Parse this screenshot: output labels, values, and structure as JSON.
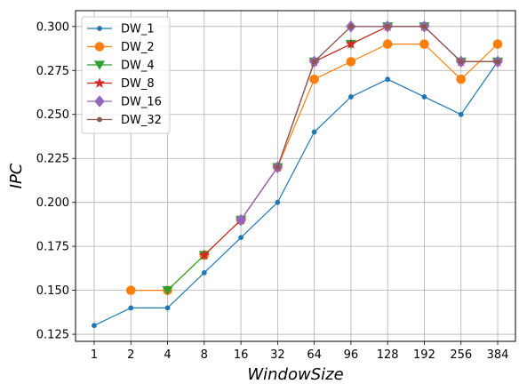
{
  "chart_data": {
    "type": "line",
    "title": "",
    "xlabel": "WindowSize",
    "ylabel": "IPC",
    "categories": [
      "1",
      "2",
      "4",
      "8",
      "16",
      "32",
      "64",
      "96",
      "128",
      "192",
      "256",
      "384"
    ],
    "ylim": [
      0.121,
      0.309
    ],
    "yticks": [
      "0.125",
      "0.150",
      "0.175",
      "0.200",
      "0.225",
      "0.250",
      "0.275",
      "0.300"
    ],
    "grid": true,
    "legend_position": "upper-left",
    "series": [
      {
        "name": "DW_1",
        "color": "#1f77b4",
        "marker": "point",
        "values": [
          0.13,
          0.14,
          0.14,
          0.16,
          0.18,
          0.2,
          0.24,
          0.26,
          0.27,
          0.26,
          0.25,
          0.28
        ]
      },
      {
        "name": "DW_2",
        "color": "#ff7f0e",
        "marker": "circle",
        "values": [
          null,
          0.15,
          0.15,
          0.17,
          0.19,
          0.22,
          0.27,
          0.28,
          0.29,
          0.29,
          0.27,
          0.29
        ]
      },
      {
        "name": "DW_4",
        "color": "#2ca02c",
        "marker": "triangle-down",
        "values": [
          null,
          null,
          0.15,
          0.17,
          0.19,
          0.22,
          0.28,
          0.29,
          0.3,
          0.3,
          0.28,
          0.28
        ]
      },
      {
        "name": "DW_8",
        "color": "#d62728",
        "marker": "star",
        "values": [
          null,
          null,
          null,
          0.17,
          0.19,
          0.22,
          0.28,
          0.29,
          0.3,
          0.3,
          0.28,
          0.28
        ]
      },
      {
        "name": "DW_16",
        "color": "#9467bd",
        "marker": "diamond",
        "values": [
          null,
          null,
          null,
          null,
          0.19,
          0.22,
          0.28,
          0.3,
          0.3,
          0.3,
          0.28,
          0.28
        ]
      },
      {
        "name": "DW_32",
        "color": "#8c564b",
        "marker": "point",
        "values": [
          null,
          null,
          null,
          null,
          null,
          0.22,
          0.28,
          0.3,
          0.3,
          0.3,
          0.28,
          0.28
        ]
      }
    ]
  }
}
